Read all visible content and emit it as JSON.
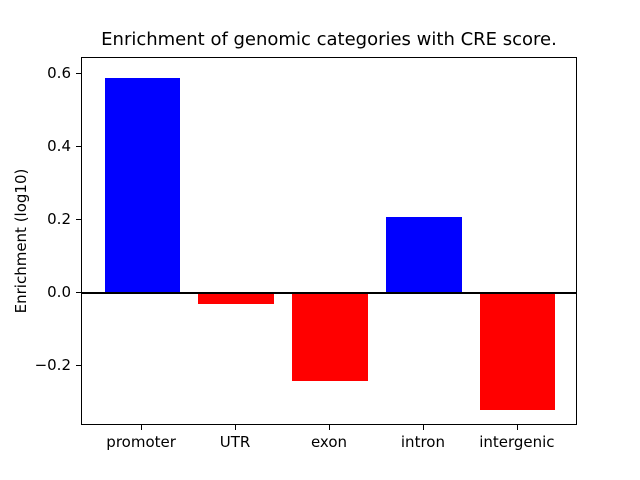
{
  "chart_data": {
    "type": "bar",
    "title": "Enrichment of genomic categories with CRE score.",
    "xlabel": "",
    "ylabel": "Enrichment (log10)",
    "categories": [
      "promoter",
      "UTR",
      "exon",
      "intron",
      "intergenic"
    ],
    "values": [
      0.59,
      -0.03,
      -0.24,
      0.21,
      -0.32
    ],
    "bar_colors": [
      "#0000ff",
      "#ff0000",
      "#ff0000",
      "#0000ff",
      "#ff0000"
    ],
    "positive_color": "#0000ff",
    "negative_color": "#ff0000",
    "bar_width_fraction": 0.8,
    "xlim": [
      -0.64,
      4.64
    ],
    "ylim": [
      -0.364,
      0.645
    ],
    "yticks": [
      {
        "value": -0.2,
        "label": "−0.2"
      },
      {
        "value": 0.0,
        "label": "0.0"
      },
      {
        "value": 0.2,
        "label": "0.2"
      },
      {
        "value": 0.4,
        "label": "0.4"
      },
      {
        "value": 0.6,
        "label": "0.6"
      }
    ],
    "zero_line": {
      "value": 0.0,
      "color": "#000000"
    },
    "grid": false,
    "background_color": "#ffffff",
    "axis_color": "#000000",
    "text_color": "#000000"
  }
}
